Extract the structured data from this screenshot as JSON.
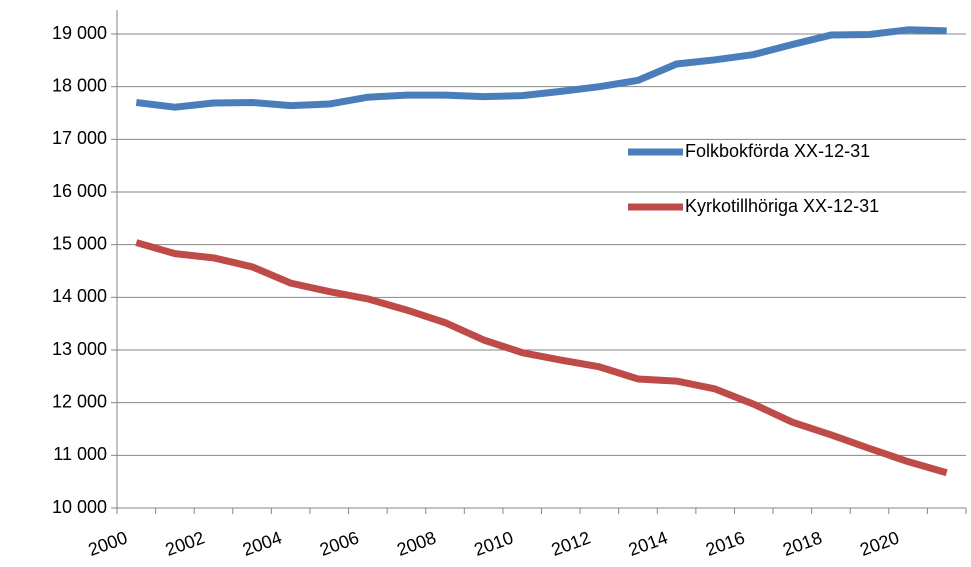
{
  "chart_data": {
    "type": "line",
    "categories": [
      "2000",
      null,
      "2002",
      null,
      "2004",
      null,
      "2006",
      null,
      "2008",
      null,
      "2010",
      null,
      "2012",
      null,
      "2014",
      null,
      "2016",
      null,
      "2018",
      null,
      "2020",
      null
    ],
    "series": [
      {
        "name": "Folkbokförda XX-12-31",
        "color": "#4a7ebb",
        "values": [
          17700,
          17610,
          17690,
          17700,
          17640,
          17670,
          17800,
          17840,
          17840,
          17810,
          17830,
          17910,
          18000,
          18120,
          18430,
          18510,
          18610,
          18800,
          18980,
          18990,
          19080,
          19060
        ]
      },
      {
        "name": "Kyrkotillhöriga XX-12-31",
        "color": "#be4b48",
        "values": [
          15040,
          14830,
          14750,
          14580,
          14270,
          14110,
          13970,
          13760,
          13520,
          13190,
          12950,
          12810,
          12680,
          12450,
          12410,
          12260,
          11970,
          11630,
          11390,
          11130,
          10880,
          10670
        ]
      }
    ],
    "ylim": [
      10000,
      19000
    ],
    "yticks": [
      {
        "value": 10000,
        "label": "10 000"
      },
      {
        "value": 11000,
        "label": "11 000"
      },
      {
        "value": 12000,
        "label": "12 000"
      },
      {
        "value": 13000,
        "label": "13 000"
      },
      {
        "value": 14000,
        "label": "14 000"
      },
      {
        "value": 15000,
        "label": "15 000"
      },
      {
        "value": 16000,
        "label": "16 000"
      },
      {
        "value": 17000,
        "label": "17 000"
      },
      {
        "value": 18000,
        "label": "18 000"
      },
      {
        "value": 19000,
        "label": "19 000"
      }
    ],
    "grid": true,
    "legend": "right"
  }
}
